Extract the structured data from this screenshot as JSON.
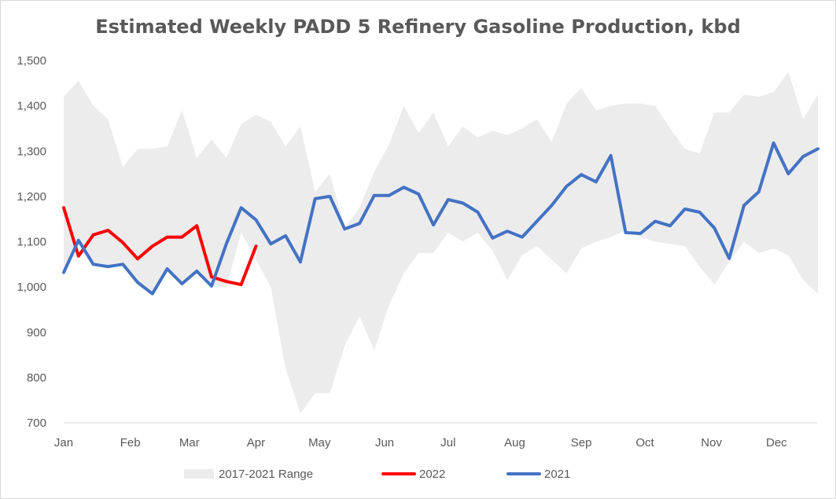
{
  "chart_data": {
    "type": "line",
    "title": "Estimated Weekly PADD 5 Refinery Gasoline Production, kbd",
    "xlabel": "",
    "ylabel": "",
    "ylim": [
      700,
      1500
    ],
    "yticks": [
      700,
      800,
      900,
      1000,
      1100,
      1200,
      1300,
      1400,
      1500
    ],
    "ytick_labels": [
      "700",
      "800",
      "900",
      "1,000",
      "1,100",
      "1,200",
      "1,300",
      "1,400",
      "1,500"
    ],
    "xlim": [
      1,
      52
    ],
    "xticks": [
      {
        "label": "Jan",
        "week": 1
      },
      {
        "label": "Feb",
        "week": 5.5
      },
      {
        "label": "Mar",
        "week": 9.5
      },
      {
        "label": "Apr",
        "week": 14
      },
      {
        "label": "May",
        "week": 18.3
      },
      {
        "label": "Jun",
        "week": 22.7
      },
      {
        "label": "Jul",
        "week": 27
      },
      {
        "label": "Aug",
        "week": 31.5
      },
      {
        "label": "Sep",
        "week": 36
      },
      {
        "label": "Oct",
        "week": 40.3
      },
      {
        "label": "Nov",
        "week": 44.8
      },
      {
        "label": "Dec",
        "week": 49.2
      }
    ],
    "legend": [
      {
        "name": "2017-2021 Range",
        "color": "#ececec",
        "kind": "area"
      },
      {
        "name": "2022",
        "color": "#ff0000",
        "kind": "line"
      },
      {
        "name": "2021",
        "color": "#4472c4",
        "kind": "line"
      }
    ],
    "range_low": [
      1030,
      1100,
      1050,
      1040,
      1050,
      1010,
      985,
      1035,
      1005,
      1030,
      1000,
      1000,
      1120,
      1060,
      1000,
      820,
      720,
      765,
      765,
      870,
      935,
      860,
      960,
      1030,
      1075,
      1075,
      1120,
      1100,
      1120,
      1080,
      1015,
      1070,
      1090,
      1060,
      1030,
      1085,
      1100,
      1110,
      1125,
      1110,
      1100,
      1095,
      1090,
      1045,
      1005,
      1055,
      1100,
      1075,
      1085,
      1070,
      1015,
      985
    ],
    "range_high": [
      1420,
      1455,
      1400,
      1370,
      1265,
      1305,
      1305,
      1310,
      1390,
      1285,
      1325,
      1285,
      1360,
      1380,
      1365,
      1310,
      1355,
      1210,
      1250,
      1130,
      1175,
      1255,
      1315,
      1400,
      1340,
      1385,
      1310,
      1355,
      1330,
      1345,
      1335,
      1350,
      1370,
      1320,
      1405,
      1440,
      1390,
      1400,
      1405,
      1405,
      1400,
      1350,
      1305,
      1295,
      1385,
      1385,
      1425,
      1420,
      1430,
      1475,
      1370,
      1425
    ],
    "series": [
      {
        "name": "2022",
        "color": "#ff0000",
        "values": [
          1175,
          1068,
          1115,
          1125,
          1098,
          1062,
          1090,
          1110,
          1110,
          1135,
          1022,
          1012,
          1005,
          1090
        ]
      },
      {
        "name": "2021",
        "color": "#4472c4",
        "values": [
          1032,
          1103,
          1050,
          1045,
          1050,
          1010,
          985,
          1040,
          1007,
          1035,
          1002,
          1095,
          1175,
          1148,
          1095,
          1113,
          1055,
          1195,
          1200,
          1128,
          1140,
          1202,
          1202,
          1220,
          1205,
          1137,
          1193,
          1185,
          1165,
          1108,
          1123,
          1110,
          1145,
          1180,
          1222,
          1248,
          1232,
          1290,
          1120,
          1118,
          1145,
          1135,
          1172,
          1165,
          1130,
          1063,
          1180,
          1210,
          1318,
          1250,
          1288,
          1305
        ]
      }
    ]
  }
}
